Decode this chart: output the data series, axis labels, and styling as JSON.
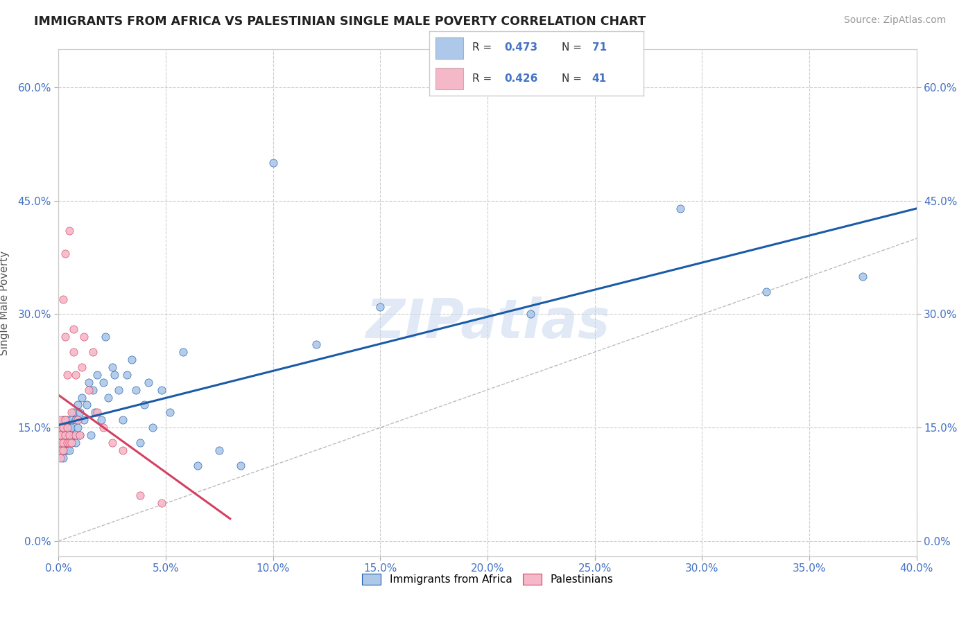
{
  "title": "IMMIGRANTS FROM AFRICA VS PALESTINIAN SINGLE MALE POVERTY CORRELATION CHART",
  "source": "Source: ZipAtlas.com",
  "ylabel": "Single Male Poverty",
  "xlim": [
    0.0,
    0.4
  ],
  "ylim": [
    -0.02,
    0.65
  ],
  "xticks": [
    0.0,
    0.05,
    0.1,
    0.15,
    0.2,
    0.25,
    0.3,
    0.35,
    0.4
  ],
  "yticks": [
    0.0,
    0.15,
    0.3,
    0.45,
    0.6
  ],
  "ytick_labels": [
    "0.0%",
    "15.0%",
    "30.0%",
    "45.0%",
    "60.0%"
  ],
  "xtick_labels": [
    "0.0%",
    "5.0%",
    "10.0%",
    "15.0%",
    "20.0%",
    "25.0%",
    "30.0%",
    "35.0%",
    "40.0%"
  ],
  "legend_r1": "0.473",
  "legend_n1": "71",
  "legend_r2": "0.426",
  "legend_n2": "41",
  "series1_color": "#adc8e8",
  "series2_color": "#f5b8c8",
  "line1_color": "#1a5ba8",
  "line2_color": "#d44060",
  "watermark": "ZIPatlas",
  "background_color": "#ffffff",
  "grid_color": "#cccccc",
  "title_color": "#222222",
  "axis_label_color": "#555555",
  "tick_color": "#4472c4",
  "series1_x": [
    0.001,
    0.001,
    0.001,
    0.002,
    0.002,
    0.002,
    0.002,
    0.002,
    0.002,
    0.003,
    0.003,
    0.003,
    0.003,
    0.003,
    0.003,
    0.004,
    0.004,
    0.004,
    0.004,
    0.004,
    0.005,
    0.005,
    0.005,
    0.005,
    0.006,
    0.006,
    0.006,
    0.007,
    0.007,
    0.008,
    0.008,
    0.009,
    0.009,
    0.01,
    0.01,
    0.011,
    0.012,
    0.013,
    0.014,
    0.015,
    0.016,
    0.017,
    0.018,
    0.02,
    0.021,
    0.022,
    0.023,
    0.025,
    0.026,
    0.028,
    0.03,
    0.032,
    0.034,
    0.036,
    0.038,
    0.04,
    0.042,
    0.044,
    0.048,
    0.052,
    0.058,
    0.065,
    0.075,
    0.085,
    0.1,
    0.12,
    0.15,
    0.22,
    0.29,
    0.33,
    0.375
  ],
  "series1_y": [
    0.13,
    0.15,
    0.12,
    0.11,
    0.14,
    0.16,
    0.13,
    0.12,
    0.15,
    0.13,
    0.14,
    0.16,
    0.12,
    0.15,
    0.13,
    0.12,
    0.14,
    0.16,
    0.13,
    0.15,
    0.13,
    0.15,
    0.12,
    0.14,
    0.16,
    0.13,
    0.15,
    0.14,
    0.17,
    0.13,
    0.16,
    0.15,
    0.18,
    0.14,
    0.17,
    0.19,
    0.16,
    0.18,
    0.21,
    0.14,
    0.2,
    0.17,
    0.22,
    0.16,
    0.21,
    0.27,
    0.19,
    0.23,
    0.22,
    0.2,
    0.16,
    0.22,
    0.24,
    0.2,
    0.13,
    0.18,
    0.21,
    0.15,
    0.2,
    0.17,
    0.25,
    0.1,
    0.12,
    0.1,
    0.5,
    0.26,
    0.31,
    0.3,
    0.44,
    0.33,
    0.35
  ],
  "series2_x": [
    0.001,
    0.001,
    0.001,
    0.001,
    0.001,
    0.001,
    0.001,
    0.001,
    0.002,
    0.002,
    0.002,
    0.002,
    0.002,
    0.003,
    0.003,
    0.003,
    0.003,
    0.004,
    0.004,
    0.004,
    0.005,
    0.005,
    0.005,
    0.006,
    0.006,
    0.007,
    0.007,
    0.008,
    0.008,
    0.009,
    0.01,
    0.011,
    0.012,
    0.014,
    0.016,
    0.018,
    0.021,
    0.025,
    0.03,
    0.038,
    0.048
  ],
  "series2_y": [
    0.13,
    0.14,
    0.15,
    0.12,
    0.11,
    0.13,
    0.16,
    0.14,
    0.12,
    0.15,
    0.32,
    0.13,
    0.15,
    0.14,
    0.38,
    0.16,
    0.27,
    0.13,
    0.22,
    0.15,
    0.14,
    0.13,
    0.41,
    0.17,
    0.13,
    0.25,
    0.28,
    0.14,
    0.22,
    0.16,
    0.14,
    0.23,
    0.27,
    0.2,
    0.25,
    0.17,
    0.15,
    0.13,
    0.12,
    0.06,
    0.05
  ]
}
